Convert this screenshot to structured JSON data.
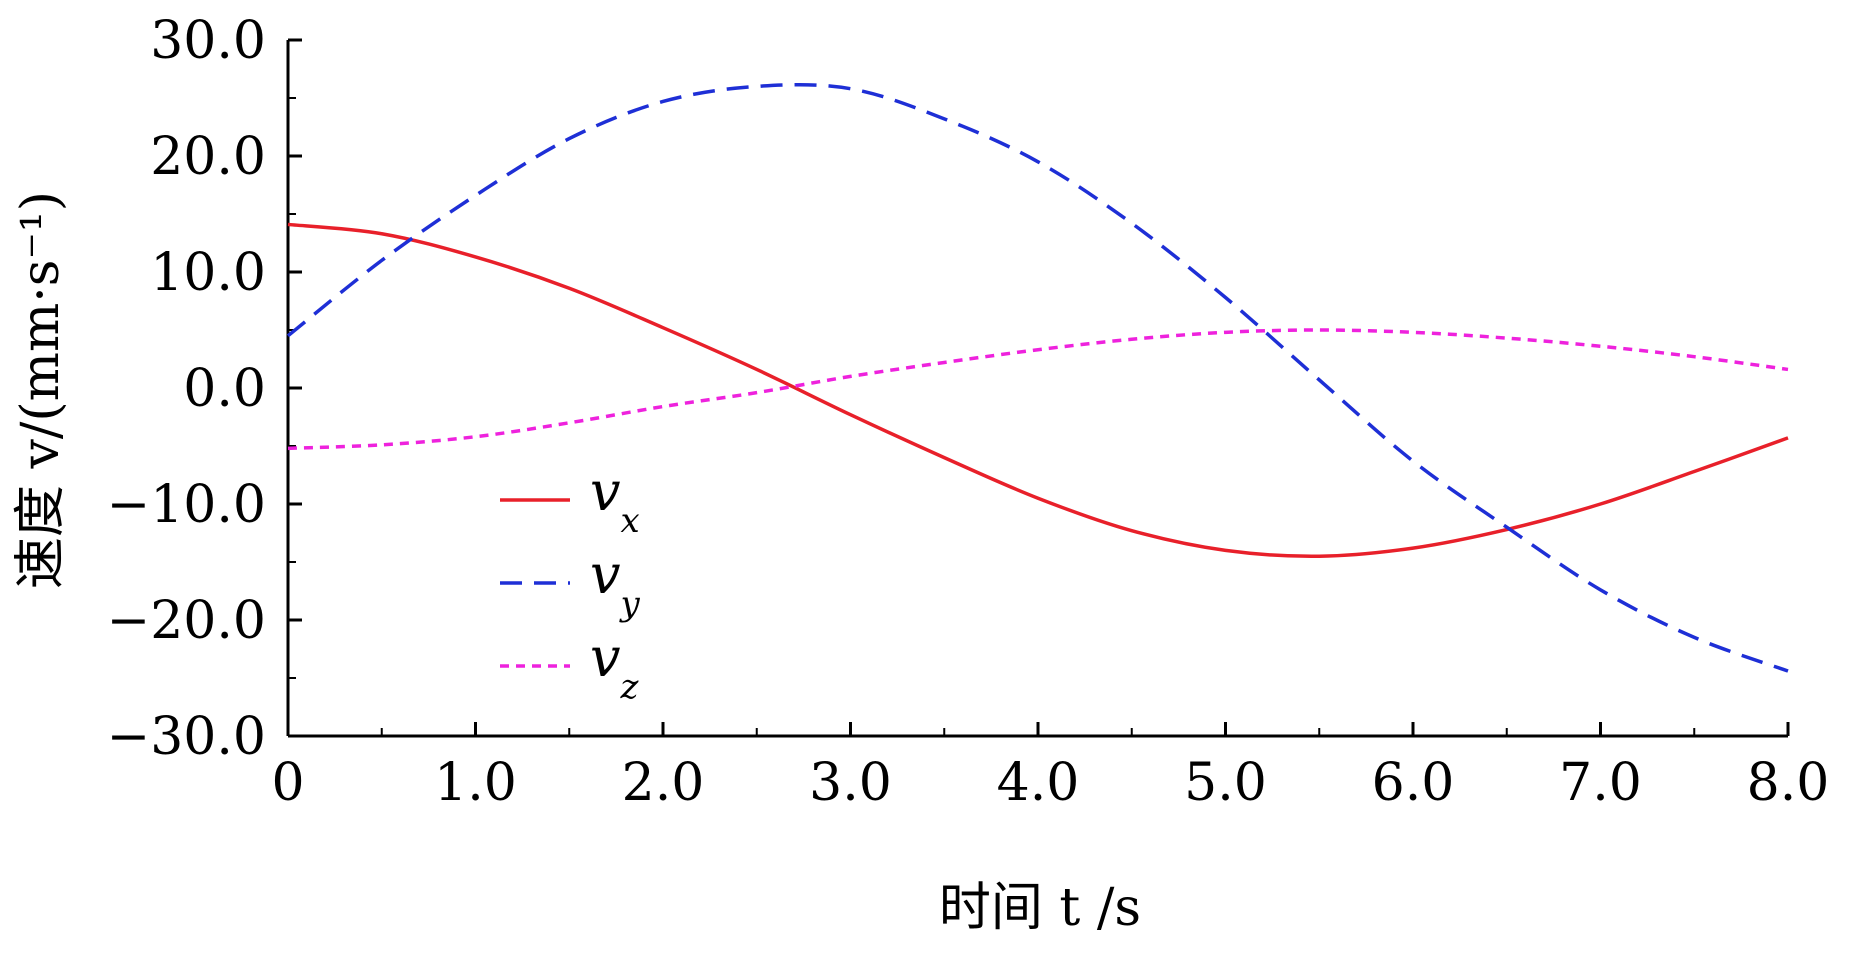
{
  "chart_data": {
    "type": "line",
    "title": "",
    "xlabel": "时间 t /s",
    "ylabel": "速度 v/(mm·s⁻¹)",
    "xlim": [
      0,
      8
    ],
    "ylim": [
      -30,
      30
    ],
    "xticks": [
      {
        "value": 0,
        "label": "0"
      },
      {
        "value": 1,
        "label": "1.0"
      },
      {
        "value": 2,
        "label": "2.0"
      },
      {
        "value": 3,
        "label": "3.0"
      },
      {
        "value": 4,
        "label": "4.0"
      },
      {
        "value": 5,
        "label": "5.0"
      },
      {
        "value": 6,
        "label": "6.0"
      },
      {
        "value": 7,
        "label": "7.0"
      },
      {
        "value": 8,
        "label": "8.0"
      }
    ],
    "yticks": [
      {
        "value": 30,
        "label": "30.0"
      },
      {
        "value": 20,
        "label": "20.0"
      },
      {
        "value": 10,
        "label": "10.0"
      },
      {
        "value": 0,
        "label": "0.0"
      },
      {
        "value": -10,
        "label": "−10.0"
      },
      {
        "value": -20,
        "label": "−20.0"
      },
      {
        "value": -30,
        "label": "−30.0"
      }
    ],
    "grid": false,
    "legend": "lower-left",
    "x": [
      0,
      0.5,
      1.0,
      1.5,
      2.0,
      2.5,
      3.0,
      3.5,
      4.0,
      4.5,
      5.0,
      5.5,
      6.0,
      6.5,
      7.0,
      7.5,
      8.0
    ],
    "series": [
      {
        "name": "v",
        "subscript": "x",
        "color": "#e8202a",
        "dash": "solid",
        "values": [
          14.1,
          13.3,
          11.3,
          8.6,
          5.2,
          1.6,
          -2.3,
          -6.0,
          -9.5,
          -12.3,
          -14.0,
          -14.5,
          -13.8,
          -12.2,
          -10.0,
          -7.2,
          -4.3
        ]
      },
      {
        "name": "v",
        "subscript": "y",
        "color": "#1e2fd6",
        "dash": "dashed",
        "values": [
          4.5,
          11.0,
          16.6,
          21.5,
          24.7,
          26.0,
          25.8,
          23.2,
          19.5,
          14.2,
          7.8,
          0.7,
          -6.3,
          -12.0,
          -17.4,
          -21.5,
          -24.4
        ]
      },
      {
        "name": "v",
        "subscript": "z",
        "color": "#ee22dd",
        "dash": "dotted",
        "values": [
          -5.2,
          -4.9,
          -4.2,
          -3.0,
          -1.6,
          -0.4,
          1.0,
          2.2,
          3.3,
          4.2,
          4.8,
          5.0,
          4.8,
          4.3,
          3.6,
          2.7,
          1.6
        ]
      }
    ]
  }
}
